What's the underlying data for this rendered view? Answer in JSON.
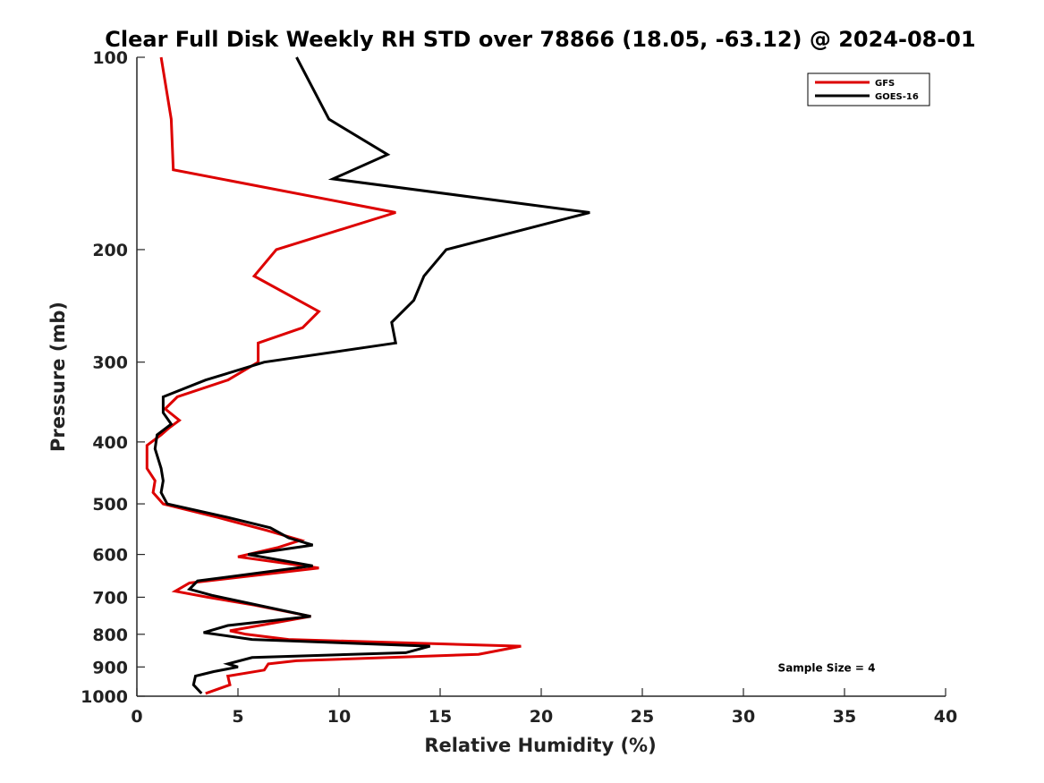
{
  "chart_data": {
    "type": "line",
    "title": "Clear Full Disk Weekly RH STD over 78866 (18.05, -63.12) @ 2024-08-01",
    "xlabel": "Relative Humidity (%)",
    "ylabel": "Pressure (mb)",
    "xlim": [
      0,
      40
    ],
    "ylim": [
      100,
      1000
    ],
    "y_scale": "log",
    "y_reversed": true,
    "grid": false,
    "legend_position": "top-right",
    "x_ticks": [
      0,
      5,
      10,
      15,
      20,
      25,
      30,
      35,
      40
    ],
    "y_ticks": [
      100,
      200,
      300,
      400,
      500,
      600,
      700,
      800,
      900,
      1000
    ],
    "series": [
      {
        "name": "GFS",
        "color": "#dd0000",
        "points": [
          [
            1.2,
            100
          ],
          [
            1.7,
            125
          ],
          [
            1.8,
            150
          ],
          [
            12.8,
            175
          ],
          [
            6.9,
            200
          ],
          [
            5.8,
            220
          ],
          [
            9.0,
            250
          ],
          [
            8.2,
            265
          ],
          [
            6.0,
            280
          ],
          [
            6.0,
            300
          ],
          [
            4.5,
            320
          ],
          [
            2.0,
            340
          ],
          [
            1.4,
            355
          ],
          [
            2.1,
            370
          ],
          [
            1.6,
            380
          ],
          [
            1.2,
            390
          ],
          [
            0.5,
            405
          ],
          [
            0.5,
            440
          ],
          [
            0.9,
            460
          ],
          [
            0.8,
            480
          ],
          [
            1.3,
            500
          ],
          [
            4.0,
            525
          ],
          [
            6.4,
            550
          ],
          [
            8.1,
            570
          ],
          [
            7.0,
            585
          ],
          [
            5.0,
            605
          ],
          [
            9.0,
            630
          ],
          [
            2.6,
            665
          ],
          [
            1.9,
            685
          ],
          [
            3.5,
            700
          ],
          [
            5.8,
            720
          ],
          [
            8.6,
            750
          ],
          [
            4.6,
            790
          ],
          [
            5.4,
            800
          ],
          [
            7.5,
            815
          ],
          [
            19.0,
            835
          ],
          [
            16.9,
            860
          ],
          [
            7.9,
            880
          ],
          [
            6.5,
            890
          ],
          [
            6.3,
            910
          ],
          [
            4.5,
            930
          ],
          [
            4.6,
            960
          ],
          [
            3.4,
            990
          ]
        ]
      },
      {
        "name": "GOES-16",
        "color": "#000000",
        "points": [
          [
            7.9,
            100
          ],
          [
            9.5,
            125
          ],
          [
            12.4,
            142
          ],
          [
            9.7,
            155
          ],
          [
            22.4,
            175
          ],
          [
            15.3,
            200
          ],
          [
            14.2,
            220
          ],
          [
            13.7,
            240
          ],
          [
            12.6,
            260
          ],
          [
            12.8,
            280
          ],
          [
            6.3,
            300
          ],
          [
            3.4,
            320
          ],
          [
            1.3,
            340
          ],
          [
            1.3,
            360
          ],
          [
            1.7,
            375
          ],
          [
            1.0,
            390
          ],
          [
            0.9,
            410
          ],
          [
            1.2,
            440
          ],
          [
            1.3,
            460
          ],
          [
            1.2,
            480
          ],
          [
            1.5,
            500
          ],
          [
            4.5,
            525
          ],
          [
            6.6,
            545
          ],
          [
            7.5,
            565
          ],
          [
            8.7,
            580
          ],
          [
            5.5,
            600
          ],
          [
            8.7,
            625
          ],
          [
            3.0,
            660
          ],
          [
            2.6,
            680
          ],
          [
            3.7,
            695
          ],
          [
            8.6,
            750
          ],
          [
            4.5,
            775
          ],
          [
            3.3,
            795
          ],
          [
            5.7,
            815
          ],
          [
            14.5,
            835
          ],
          [
            13.3,
            855
          ],
          [
            5.7,
            870
          ],
          [
            4.5,
            890
          ],
          [
            5.0,
            900
          ],
          [
            3.8,
            915
          ],
          [
            2.9,
            930
          ],
          [
            2.8,
            960
          ],
          [
            3.2,
            990
          ]
        ]
      }
    ],
    "annotations": [
      {
        "text": "Sample Size = 4",
        "x": 35,
        "y": 900
      }
    ]
  }
}
